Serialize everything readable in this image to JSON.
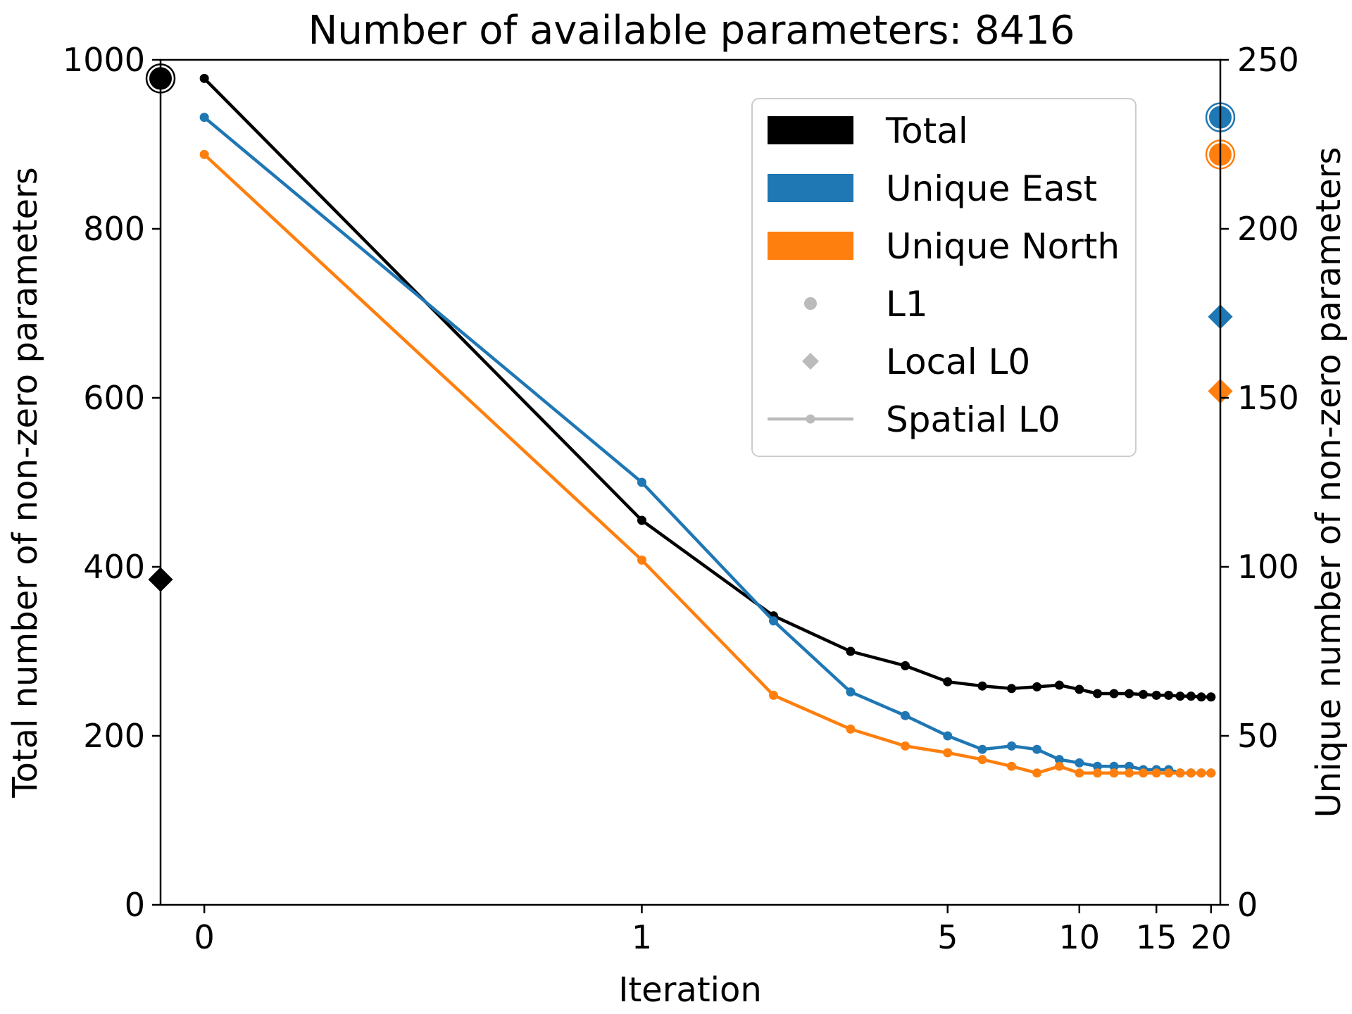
{
  "chart_data": {
    "type": "line",
    "title": "Number of available parameters: 8416",
    "xlabel": "Iteration",
    "ylabel_left": "Total number of non-zero parameters",
    "ylabel_right": "Unique number of non-zero parameters",
    "x_scale": "symlog",
    "xlim": [
      -0.1,
      21
    ],
    "ylim_left": [
      0,
      1000
    ],
    "ylim_right": [
      0,
      250
    ],
    "x_ticks": [
      0,
      1,
      5,
      10,
      15,
      20
    ],
    "x_tick_labels": [
      "0",
      "1",
      "5",
      "10",
      "15",
      "20"
    ],
    "y_left_ticks": [
      0,
      200,
      400,
      600,
      800,
      1000
    ],
    "y_left_tick_labels": [
      "0",
      "200",
      "400",
      "600",
      "800",
      "1000"
    ],
    "y_right_ticks": [
      0,
      50,
      100,
      150,
      200,
      250
    ],
    "y_right_tick_labels": [
      "0",
      "50",
      "100",
      "150",
      "200",
      "250"
    ],
    "grid": false,
    "legend_position": "upper-right",
    "x": [
      0,
      1,
      2,
      3,
      4,
      5,
      6,
      7,
      8,
      9,
      10,
      11,
      12,
      13,
      14,
      15,
      16,
      17,
      18,
      19,
      20
    ],
    "series": [
      {
        "name": "Total",
        "axis": "left",
        "color": "#000000",
        "values": [
          978,
          455,
          342,
          300,
          283,
          264,
          259,
          256,
          258,
          260,
          255,
          250,
          250,
          250,
          249,
          248,
          248,
          247,
          247,
          246,
          246
        ]
      },
      {
        "name": "Unique East",
        "axis": "right",
        "color": "#1f77b4",
        "values": [
          233,
          125,
          84,
          63,
          56,
          50,
          46,
          47,
          46,
          43,
          42,
          41,
          41,
          41,
          40,
          40,
          40,
          39,
          39,
          39,
          39
        ]
      },
      {
        "name": "Unique North",
        "axis": "right",
        "color": "#ff7f0e",
        "values": [
          222,
          102,
          62,
          52,
          47,
          45,
          43,
          41,
          39,
          41,
          39,
          39,
          39,
          39,
          39,
          39,
          39,
          39,
          39,
          39,
          39
        ]
      }
    ],
    "reference_markers": [
      {
        "series": "Total",
        "method": "L1",
        "axis": "left",
        "value": 978,
        "side": "left"
      },
      {
        "series": "Total",
        "method": "Local L0",
        "axis": "left",
        "value": 385,
        "side": "left"
      },
      {
        "series": "Unique East",
        "method": "L1",
        "axis": "right",
        "value": 233,
        "side": "right"
      },
      {
        "series": "Unique North",
        "method": "L1",
        "axis": "right",
        "value": 222,
        "side": "right"
      },
      {
        "series": "Unique East",
        "method": "Local L0",
        "axis": "right",
        "value": 174,
        "side": "right"
      },
      {
        "series": "Unique North",
        "method": "Local L0",
        "axis": "right",
        "value": 152,
        "side": "right"
      }
    ],
    "legend": [
      {
        "label": "Total",
        "kind": "patch",
        "color": "#000000"
      },
      {
        "label": "Unique East",
        "kind": "patch",
        "color": "#1f77b4"
      },
      {
        "label": "Unique North",
        "kind": "patch",
        "color": "#ff7f0e"
      },
      {
        "label": "L1",
        "kind": "circle",
        "color": "#bbbbbb"
      },
      {
        "label": "Local L0",
        "kind": "diamond",
        "color": "#bbbbbb"
      },
      {
        "label": "Spatial L0",
        "kind": "line",
        "color": "#bbbbbb"
      }
    ]
  }
}
